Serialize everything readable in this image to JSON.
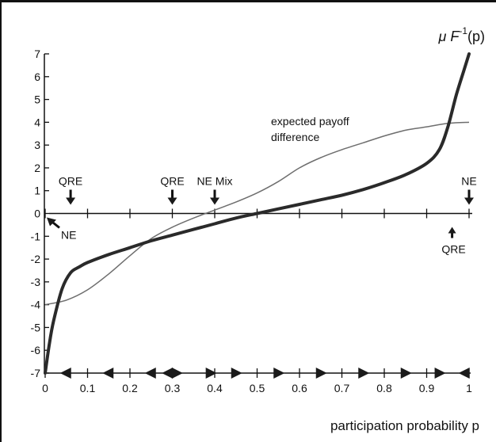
{
  "chart_data": {
    "type": "line",
    "title": "",
    "xlabel": "participation probability p",
    "ylabel": "",
    "xlim": [
      0,
      1
    ],
    "ylim": [
      -7,
      7
    ],
    "x_ticks": [
      "0",
      "0.1",
      "0.2",
      "0.3",
      "0.4",
      "0.5",
      "0.6",
      "0.7",
      "0.8",
      "0.9",
      "1"
    ],
    "y_ticks": [
      "7",
      "6",
      "5",
      "4",
      "3",
      "2",
      "1",
      "0",
      "-1",
      "-2",
      "-3",
      "-4",
      "-5",
      "-6",
      "-7"
    ],
    "grid": false,
    "series": [
      {
        "name": "μ F⁻¹(p)",
        "label_parts": {
          "base": "μ F",
          "sup": "-1",
          "tail": "(p)"
        },
        "color": "#2a2a2a",
        "x": [
          0,
          0.01,
          0.02,
          0.04,
          0.06,
          0.08,
          0.1,
          0.15,
          0.2,
          0.25,
          0.3,
          0.35,
          0.4,
          0.45,
          0.5,
          0.55,
          0.6,
          0.65,
          0.7,
          0.75,
          0.8,
          0.85,
          0.9,
          0.93,
          0.95,
          0.97,
          0.99,
          1.0
        ],
        "y": [
          -7,
          -5.7,
          -4.7,
          -3.3,
          -2.6,
          -2.35,
          -2.15,
          -1.8,
          -1.5,
          -1.2,
          -0.95,
          -0.7,
          -0.45,
          -0.2,
          0.0,
          0.2,
          0.4,
          0.6,
          0.8,
          1.05,
          1.35,
          1.7,
          2.2,
          2.8,
          3.8,
          5.2,
          6.4,
          7.0
        ]
      },
      {
        "name": "expected payoff difference",
        "label_lines": [
          "expected payoff",
          "difference"
        ],
        "color": "#6e6e6e",
        "x": [
          0,
          0.05,
          0.1,
          0.15,
          0.2,
          0.25,
          0.3,
          0.35,
          0.4,
          0.45,
          0.5,
          0.55,
          0.6,
          0.65,
          0.7,
          0.75,
          0.8,
          0.85,
          0.9,
          0.95,
          1.0
        ],
        "y": [
          -4.0,
          -3.8,
          -3.35,
          -2.65,
          -1.85,
          -1.1,
          -0.6,
          -0.2,
          0.15,
          0.5,
          0.9,
          1.4,
          2.0,
          2.45,
          2.8,
          3.1,
          3.4,
          3.65,
          3.8,
          3.95,
          4.0
        ]
      }
    ],
    "annotations": [
      {
        "text": "QRE",
        "x": 0.06,
        "arrow": "down",
        "side": "above"
      },
      {
        "text": "QRE",
        "x": 0.3,
        "arrow": "down",
        "side": "above"
      },
      {
        "text": "NE Mix",
        "x": 0.4,
        "arrow": "down",
        "side": "above"
      },
      {
        "text": "NE",
        "x": 1.0,
        "arrow": "down",
        "side": "above"
      },
      {
        "text": "NE",
        "x": 0.0,
        "arrow": "up-left",
        "side": "below"
      },
      {
        "text": "QRE",
        "x": 0.96,
        "arrow": "up",
        "side": "below"
      }
    ],
    "dynamics_arrows": [
      {
        "x": 0.05,
        "direction": "left"
      },
      {
        "x": 0.15,
        "direction": "left"
      },
      {
        "x": 0.25,
        "direction": "left"
      },
      {
        "x": 0.29,
        "direction": "left"
      },
      {
        "x": 0.31,
        "direction": "right"
      },
      {
        "x": 0.39,
        "direction": "right"
      },
      {
        "x": 0.45,
        "direction": "right"
      },
      {
        "x": 0.55,
        "direction": "right"
      },
      {
        "x": 0.65,
        "direction": "right"
      },
      {
        "x": 0.75,
        "direction": "right"
      },
      {
        "x": 0.85,
        "direction": "right"
      },
      {
        "x": 0.93,
        "direction": "right"
      },
      {
        "x": 0.99,
        "direction": "left"
      }
    ]
  }
}
